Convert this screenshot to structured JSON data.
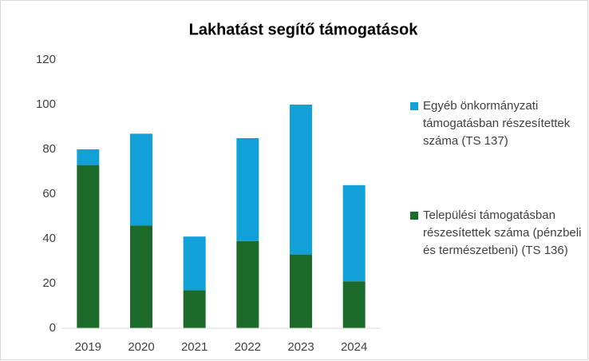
{
  "chart_data": {
    "type": "stacked_bar",
    "title": "Lakhatást segítő támogatások",
    "categories": [
      "2019",
      "2020",
      "2021",
      "2022",
      "2023",
      "2024"
    ],
    "series": [
      {
        "name": "Egyéb önkormányzati támogatásban részesítettek száma (TS 137)",
        "color": "#11a0d8",
        "values": [
          7,
          41,
          24,
          46,
          67,
          43
        ]
      },
      {
        "name": "Települési támogatásban részesítettek száma (pénzbeli és természetbeni) (TS 136)",
        "color": "#1c6b2a",
        "values": [
          73,
          46,
          17,
          39,
          33,
          21
        ]
      }
    ],
    "ylim": [
      0,
      120
    ],
    "yticks": [
      0,
      20,
      40,
      60,
      80,
      100,
      120
    ],
    "grid": false,
    "legend": "right"
  }
}
